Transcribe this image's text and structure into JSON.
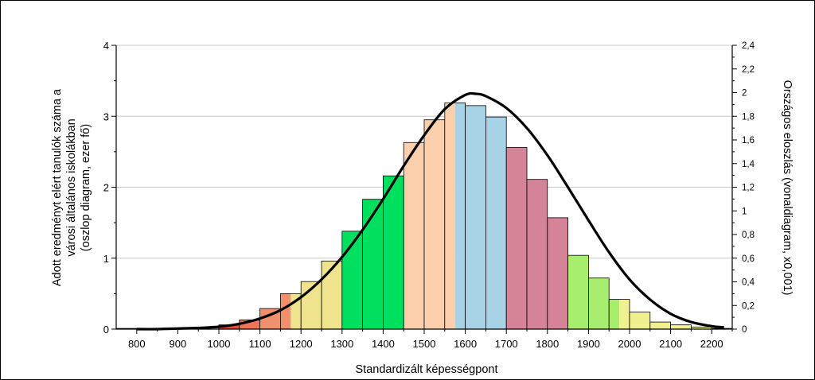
{
  "chart_data": {
    "type": "bar",
    "title": "",
    "xlabel": "Standardizált képességpont",
    "ylabel_left_lines": [
      "Adott eredményt elért tanulók száma a",
      "városi általános iskolákban",
      "(oszlop diagram, ezer fő)"
    ],
    "ylabel_right": "Országos eloszlás (vonaldiagram, x0,001)",
    "xlim": [
      750,
      2250
    ],
    "ylim_left": [
      0,
      4
    ],
    "ylim_right": [
      0,
      2.4
    ],
    "x_ticks": [
      800,
      900,
      1000,
      1100,
      1200,
      1300,
      1400,
      1500,
      1600,
      1700,
      1800,
      1900,
      2000,
      2100,
      2200
    ],
    "x_tick_labels": [
      "800",
      "900",
      "1000",
      "1100",
      "1200",
      "1300",
      "1400",
      "1500",
      "1600",
      "1700",
      "1800",
      "1900",
      "2000",
      "2100",
      "2200"
    ],
    "y_left_ticks": [
      0,
      1,
      2,
      3,
      4
    ],
    "y_left_tick_labels": [
      "0",
      "1",
      "2",
      "3",
      "4"
    ],
    "y_right_ticks": [
      0,
      0.2,
      0.4,
      0.6,
      0.8,
      1,
      1.2,
      1.4,
      1.6,
      1.8,
      2,
      2.2,
      2.4
    ],
    "y_right_tick_labels": [
      "0",
      "0,2",
      "0,4",
      "0,6",
      "0,8",
      "1",
      "1,2",
      "1,4",
      "1,6",
      "1,8",
      "2",
      "2,2",
      "2,4"
    ],
    "grid_y": true,
    "bin_width": 50,
    "bars": [
      {
        "x": 775,
        "value": 0.01,
        "colors": [
          "#ffffff"
        ]
      },
      {
        "x": 825,
        "value": 0.01,
        "colors": [
          "#ffffff"
        ]
      },
      {
        "x": 875,
        "value": 0.01,
        "colors": [
          "#ffffff"
        ]
      },
      {
        "x": 925,
        "value": 0.01,
        "colors": [
          "#ffffff"
        ]
      },
      {
        "x": 975,
        "value": 0.02,
        "colors": [
          "#ffffff"
        ]
      },
      {
        "x": 1025,
        "value": 0.06,
        "colors": [
          "#e84a3a"
        ]
      },
      {
        "x": 1075,
        "value": 0.13,
        "colors": [
          "#f0735a"
        ]
      },
      {
        "x": 1125,
        "value": 0.29,
        "colors": [
          "#f0906f"
        ]
      },
      {
        "x": 1175,
        "value": 0.5,
        "colors": [
          "#f0906f",
          "#efe48d"
        ]
      },
      {
        "x": 1225,
        "value": 0.67,
        "colors": [
          "#efe48d"
        ]
      },
      {
        "x": 1275,
        "value": 0.96,
        "colors": [
          "#efe48d"
        ]
      },
      {
        "x": 1325,
        "value": 1.38,
        "colors": [
          "#00e05f"
        ]
      },
      {
        "x": 1375,
        "value": 1.83,
        "colors": [
          "#00e05f"
        ]
      },
      {
        "x": 1425,
        "value": 2.16,
        "colors": [
          "#00e05f"
        ]
      },
      {
        "x": 1475,
        "value": 2.63,
        "colors": [
          "#fcd0ad"
        ]
      },
      {
        "x": 1525,
        "value": 2.95,
        "colors": [
          "#fcd0ad"
        ]
      },
      {
        "x": 1575,
        "value": 3.19,
        "colors": [
          "#fcd0ad",
          "#a8d3e6"
        ]
      },
      {
        "x": 1625,
        "value": 3.15,
        "colors": [
          "#a8d3e6"
        ]
      },
      {
        "x": 1675,
        "value": 2.99,
        "colors": [
          "#a8d3e6"
        ]
      },
      {
        "x": 1725,
        "value": 2.56,
        "colors": [
          "#d58498"
        ]
      },
      {
        "x": 1775,
        "value": 2.11,
        "colors": [
          "#d58498"
        ]
      },
      {
        "x": 1825,
        "value": 1.57,
        "colors": [
          "#d58498"
        ]
      },
      {
        "x": 1875,
        "value": 1.04,
        "colors": [
          "#a8ee6e"
        ]
      },
      {
        "x": 1925,
        "value": 0.72,
        "colors": [
          "#a8ee6e"
        ]
      },
      {
        "x": 1975,
        "value": 0.42,
        "colors": [
          "#a8ee6e",
          "#f0f090"
        ]
      },
      {
        "x": 2025,
        "value": 0.24,
        "colors": [
          "#f0f090"
        ]
      },
      {
        "x": 2075,
        "value": 0.1,
        "colors": [
          "#f0f090"
        ]
      },
      {
        "x": 2125,
        "value": 0.06,
        "colors": [
          "#f0f090"
        ]
      },
      {
        "x": 2175,
        "value": 0.03,
        "colors": [
          "#f0f090"
        ]
      },
      {
        "x": 2225,
        "value": 0.01,
        "colors": [
          "#f0f090"
        ]
      }
    ],
    "curve": {
      "axis": "right",
      "color": "#000000",
      "x": [
        800,
        850,
        900,
        950,
        1000,
        1050,
        1100,
        1150,
        1200,
        1250,
        1300,
        1350,
        1400,
        1450,
        1500,
        1550,
        1600,
        1625,
        1650,
        1700,
        1750,
        1800,
        1850,
        1900,
        1950,
        2000,
        2050,
        2100,
        2150,
        2200,
        2230
      ],
      "y": [
        0.0,
        0.0,
        0.005,
        0.01,
        0.02,
        0.045,
        0.09,
        0.16,
        0.27,
        0.42,
        0.61,
        0.84,
        1.1,
        1.38,
        1.64,
        1.86,
        1.98,
        1.99,
        1.97,
        1.87,
        1.7,
        1.47,
        1.2,
        0.92,
        0.65,
        0.42,
        0.25,
        0.13,
        0.06,
        0.025,
        0.015
      ]
    }
  }
}
